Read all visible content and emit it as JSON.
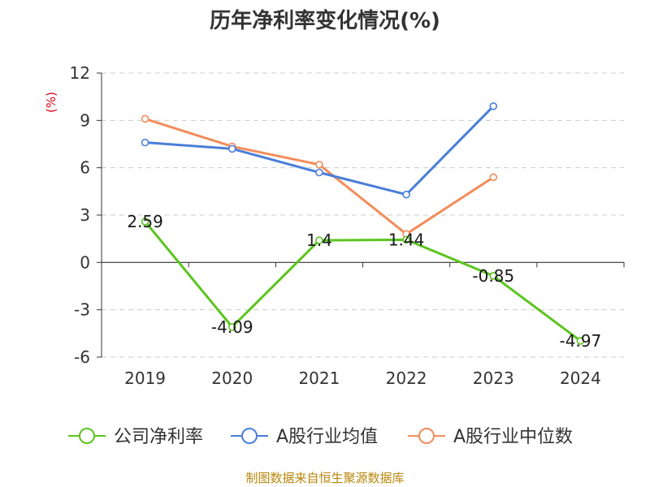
{
  "chart_data": {
    "type": "line",
    "title": "历年净利率变化情况(%)",
    "ylabel": "(%)",
    "categories": [
      "2019",
      "2020",
      "2021",
      "2022",
      "2023",
      "2024"
    ],
    "ylim": [
      -6,
      12
    ],
    "yticks": [
      12,
      9,
      6,
      3,
      0,
      -3,
      -6
    ],
    "ytick_labels": [
      "12",
      "9",
      "6",
      "3",
      "0",
      "-3",
      "-6"
    ],
    "grid": true,
    "legend_position": "bottom",
    "series": [
      {
        "name": "公司净利率",
        "color": "#5cc41e",
        "values": [
          2.59,
          -4.09,
          1.4,
          1.44,
          -0.85,
          -4.97
        ],
        "labels": [
          "2.59",
          "-4.09",
          "1.4",
          "1.44",
          "-0.85",
          "-4.97"
        ]
      },
      {
        "name": "A股行业均值",
        "color": "#4a7fd9",
        "values": [
          7.6,
          7.2,
          5.7,
          4.3,
          9.9,
          null
        ]
      },
      {
        "name": "A股行业中位数",
        "color": "#f28c5a",
        "values": [
          9.1,
          7.35,
          6.2,
          1.8,
          5.4,
          null
        ]
      }
    ]
  },
  "footer": {
    "source": "制图数据来自恒生聚源数据库"
  }
}
